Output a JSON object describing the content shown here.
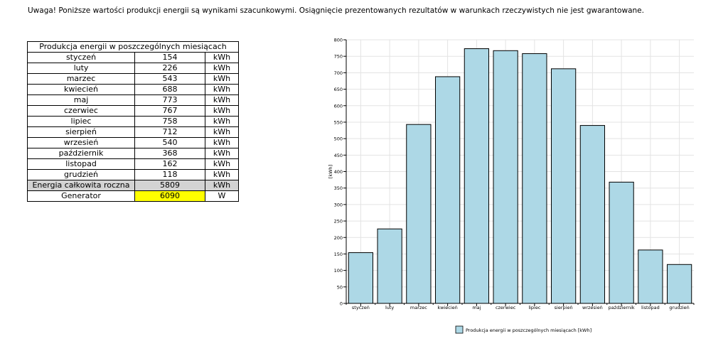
{
  "warning": "Uwaga! Poniższe wartości produkcji energii są wynikami szacunkowymi. Osiągnięcie prezentowanych rezultatów w warunkach rzeczywistych nie jest gwarantowane.",
  "table": {
    "title": "Produkcja energii w poszczególnych miesiącach",
    "rows": [
      {
        "month": "styczeń",
        "value": "154",
        "unit": "kWh"
      },
      {
        "month": "luty",
        "value": "226",
        "unit": "kWh"
      },
      {
        "month": "marzec",
        "value": "543",
        "unit": "kWh"
      },
      {
        "month": "kwiecień",
        "value": "688",
        "unit": "kWh"
      },
      {
        "month": "maj",
        "value": "773",
        "unit": "kWh"
      },
      {
        "month": "czerwiec",
        "value": "767",
        "unit": "kWh"
      },
      {
        "month": "lipiec",
        "value": "758",
        "unit": "kWh"
      },
      {
        "month": "sierpień",
        "value": "712",
        "unit": "kWh"
      },
      {
        "month": "wrzesień",
        "value": "540",
        "unit": "kWh"
      },
      {
        "month": "październik",
        "value": "368",
        "unit": "kWh"
      },
      {
        "month": "listopad",
        "value": "162",
        "unit": "kWh"
      },
      {
        "month": "grudzień",
        "value": "118",
        "unit": "kWh"
      }
    ],
    "total": {
      "label": "Energia całkowita roczna",
      "value": "5809",
      "unit": "kWh"
    },
    "generator": {
      "label": "Generator",
      "value": "6090",
      "unit": "W"
    }
  },
  "chart_data": {
    "type": "bar",
    "categories": [
      "styczeń",
      "luty",
      "marzec",
      "kwiecień",
      "maj",
      "czerwiec",
      "lipiec",
      "sierpień",
      "wrzesień",
      "październik",
      "listopad",
      "grudzień"
    ],
    "values": [
      154,
      226,
      543,
      688,
      773,
      767,
      758,
      712,
      540,
      368,
      162,
      118
    ],
    "series": [
      {
        "name": "Produkcja energii w poszczególnych miesiącach [kWh]",
        "values": [
          154,
          226,
          543,
          688,
          773,
          767,
          758,
          712,
          540,
          368,
          162,
          118
        ]
      }
    ],
    "ylabel": "[kWh]",
    "xlabel": "",
    "ylim": [
      0,
      800
    ],
    "yticks": [
      0,
      50,
      100,
      150,
      200,
      250,
      300,
      350,
      400,
      450,
      500,
      550,
      600,
      650,
      700,
      750,
      800
    ],
    "grid": true,
    "legend_position": "bottom",
    "bar_color": "#add8e6",
    "bar_edge_color": "#000000"
  }
}
